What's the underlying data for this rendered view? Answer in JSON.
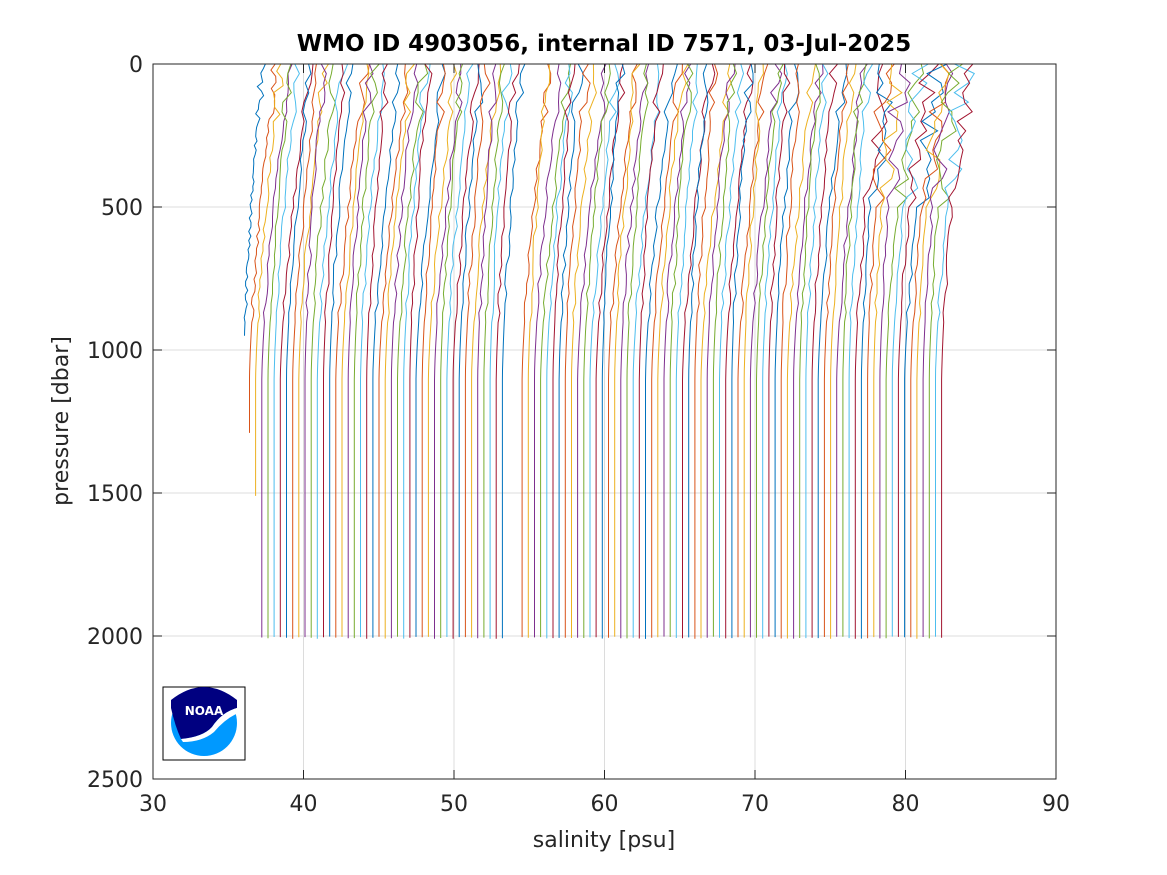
{
  "chart_data": {
    "type": "line",
    "title": "WMO ID 4903056, internal ID 7571, 03-Jul-2025",
    "xlabel": "salinity [psu]",
    "ylabel": "pressure [dbar]",
    "xlim": [
      30,
      90
    ],
    "ylim": [
      0,
      2500
    ],
    "y_reversed": true,
    "x_ticks": [
      30,
      40,
      50,
      60,
      70,
      80,
      90
    ],
    "y_ticks": [
      0,
      500,
      1000,
      1500,
      2000,
      2500
    ],
    "grid": true,
    "legend": "none",
    "profile_offset_psu": 0.4,
    "profile_count": 112,
    "first_profile_deep_salinity": 36.0,
    "last_profile_deep_salinity": 82.4,
    "max_pressure_dbar": 2010,
    "gap_between_profiles_psu": [
      53.6,
      54.5
    ],
    "series_colors": [
      "#0072bd",
      "#d95319",
      "#edb120",
      "#7e2f8e",
      "#77ac30",
      "#4dbeee",
      "#a2142f"
    ]
  },
  "logo": {
    "text": "NOAA",
    "colors": {
      "navy": "#000080",
      "sky": "#0099ff"
    }
  }
}
